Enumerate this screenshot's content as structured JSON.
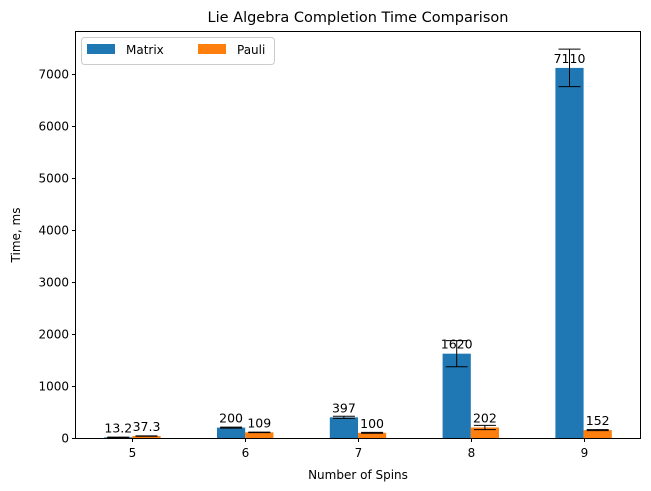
{
  "chart_data": {
    "type": "bar",
    "title": "Lie Algebra Completion Time Comparison",
    "xlabel": "Number of Spins",
    "ylabel": "Time, ms",
    "categories": [
      "5",
      "6",
      "7",
      "8",
      "9"
    ],
    "ylim": [
      0,
      7800
    ],
    "yticks": [
      0,
      1000,
      2000,
      3000,
      4000,
      5000,
      6000,
      7000
    ],
    "grid": false,
    "legend": {
      "placement": "top-left",
      "columns": 2
    },
    "series": [
      {
        "name": "Matrix",
        "color": "#1f77b4",
        "values": [
          13.2,
          200,
          397,
          1620,
          7110
        ],
        "labels": [
          "13.2",
          "200",
          "397",
          "1620",
          "7110"
        ],
        "errors": [
          4,
          10,
          20,
          250,
          360
        ]
      },
      {
        "name": "Pauli",
        "color": "#ff7f0e",
        "values": [
          37.3,
          109,
          100,
          202,
          152
        ],
        "labels": [
          "37.3",
          "109",
          "100",
          "202",
          "152"
        ],
        "errors": [
          3,
          5,
          8,
          40,
          10
        ]
      }
    ]
  }
}
